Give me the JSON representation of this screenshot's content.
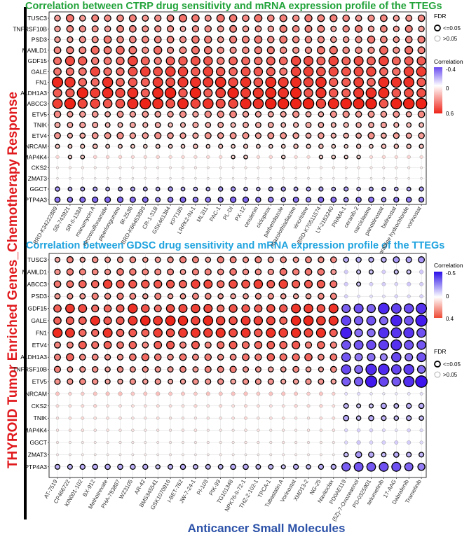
{
  "side_title": "THYROID Tumor Enriched Genes_Chemotherapy Response",
  "bottom_title": "Anticancer Small Molecules",
  "colors": {
    "negative": "#3d14ec",
    "zero": "#ffffff",
    "positive": "#ee2418",
    "grid": "#d9d9d9",
    "side": "#e0191d",
    "bottom": "#2c52a8"
  },
  "chart_data": [
    {
      "type": "heatmap",
      "title": "Correlation between CTRP drug sensitivity and mRNA expression profile of the TTEGs",
      "genes": [
        "TUSC3",
        "TNFRSF10B",
        "PSD3",
        "MAMLD1",
        "GDF15",
        "GALE",
        "FN1",
        "ALDH1A3",
        "ABCC3",
        "ETV5",
        "TNIK",
        "ETV4",
        "NRCAM",
        "MAP4K4",
        "CKS2",
        "ZMAT3",
        "GGCT",
        "PTP4A3"
      ],
      "drugs": [
        "BRD-K34222889",
        "SB-743921",
        "SR-II-138A",
        "manumycin A",
        "necrosulfonamide",
        "piperlongumine",
        "BI-2536",
        "BRD-K66453893",
        "CR-1-31B",
        "GSK461364",
        "KPT185",
        "LRRK2-IN-1",
        "ML311",
        "PAC-1",
        "PL-DI",
        "PX-12",
        "cerulenin",
        "ciclopirox",
        "parbendazole",
        "triazolothiadiazine",
        "vincristine",
        "BRD-K70511574",
        "LY-2183240",
        "PRIMA-1",
        "ceranib-2",
        "narciclasine",
        "panobinostat",
        "belinostat",
        "cytarabine hydrochloride",
        "vorinostat"
      ],
      "row_corr": [
        0.33,
        0.3,
        0.32,
        0.36,
        0.44,
        0.45,
        0.5,
        0.52,
        0.56,
        0.28,
        0.22,
        0.26,
        0.16,
        0.12,
        0.05,
        0.03,
        -0.15,
        -0.22
      ],
      "legend": {
        "fdr_title": "FDR",
        "fdr_levels": [
          "<=0.05",
          ">0.05"
        ],
        "corr_title": "Correlation",
        "corr_ticks": [
          -0.4,
          0.0,
          0.6
        ],
        "corr_range": [
          -0.4,
          0.6
        ]
      }
    },
    {
      "type": "heatmap",
      "title": "Correlation between GDSC drug sensitivity and mRNA expression profile of the TTEGs",
      "genes": [
        "TUSC3",
        "MAMLD1",
        "ABCC3",
        "PSD3",
        "GDF15",
        "GALE",
        "FN1",
        "ETV4",
        "ALDH1A3",
        "TNFRSF10B",
        "ETV5",
        "NRCAM",
        "CKS2",
        "TNIK",
        "MAP4K4",
        "GGCT",
        "ZMAT3",
        "PTP4A3"
      ],
      "drugs": [
        "AT-7519",
        "CP466722",
        "KIN001-102",
        "BX-912",
        "Methotrexate",
        "PHA-793887",
        "WZ3105",
        "AR-42",
        "BMS345541",
        "GSK1070916",
        "I-BET-762",
        "JW-7-24-1",
        "PI-103",
        "PIK-93",
        "TG101348",
        "NPK76-II-72-1",
        "THZ-2-102-1",
        "TPCA-1",
        "Tubastatin A",
        "Vorinostat",
        "XMD13-2",
        "NG-25",
        "Navitoclax",
        "PD0AE119",
        "(5Z)-7-Oxozeaenol",
        "PD-0325901",
        "selumetinib",
        "17-AAG",
        "Dabrafenib",
        "Trametinib"
      ],
      "row_corr": [
        0.2,
        0.22,
        0.3,
        0.2,
        0.32,
        0.34,
        0.33,
        0.26,
        0.24,
        0.2,
        0.18,
        0.1,
        0.07,
        0.06,
        0.05,
        0.04,
        0.03,
        -0.15
      ],
      "late_corr": [
        -0.18,
        -0.12,
        -0.1,
        -0.08,
        -0.38,
        -0.42,
        -0.4,
        -0.44,
        -0.33,
        -0.4,
        -0.45,
        -0.06,
        -0.15,
        -0.15,
        -0.08,
        -0.1,
        -0.18,
        -0.3
      ],
      "late_from_drug": "PD0AE119",
      "legend": {
        "corr_title": "Correlation",
        "corr_ticks": [
          -0.5,
          0.0,
          0.4
        ],
        "corr_range": [
          -0.5,
          0.4
        ],
        "fdr_title": "FDR",
        "fdr_levels": [
          "<=0.05",
          ">0.05"
        ]
      }
    }
  ]
}
